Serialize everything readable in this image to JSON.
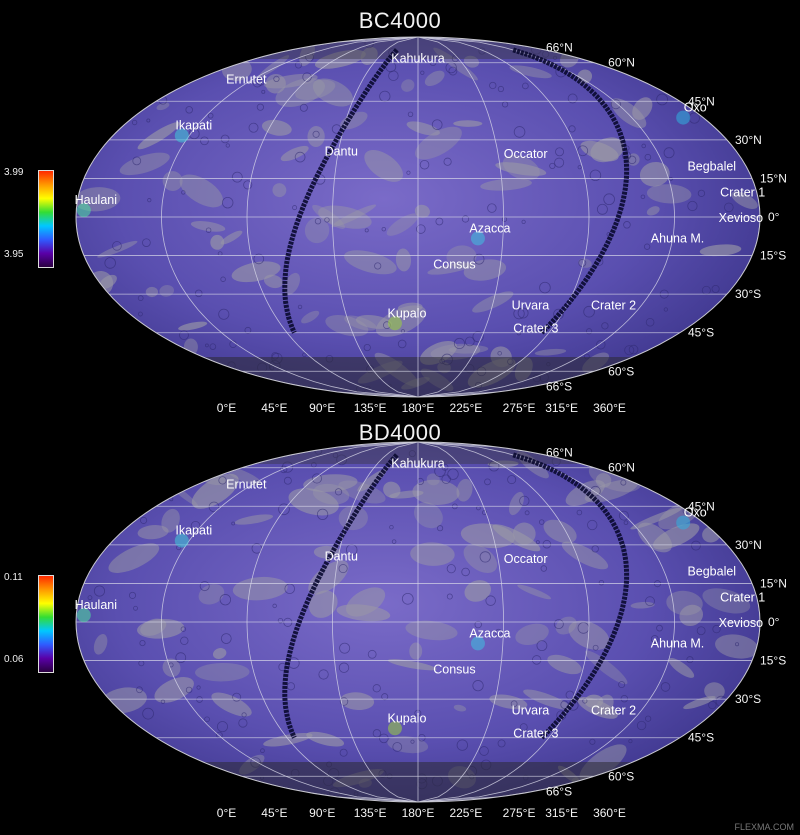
{
  "panels": [
    {
      "title": "BC4000",
      "colorbar": {
        "max": "3.99",
        "min": "3.95"
      },
      "features": [
        {
          "name": "Kahukura",
          "lon": 180,
          "lat": 60
        },
        {
          "name": "Ernutet",
          "lon": 45,
          "lat": 52
        },
        {
          "name": "Ikapati",
          "lon": 45,
          "lat": 34
        },
        {
          "name": "Dantu",
          "lon": 137,
          "lat": 24
        },
        {
          "name": "Occator",
          "lon": 240,
          "lat": 23
        },
        {
          "name": "Oxo",
          "lon": 360,
          "lat": 41
        },
        {
          "name": "Begbalel",
          "lon": 340,
          "lat": 18
        },
        {
          "name": "Crater 1",
          "lon": 352,
          "lat": 8
        },
        {
          "name": "Haulani",
          "lon": 10,
          "lat": 5
        },
        {
          "name": "Xevioso",
          "lon": 350,
          "lat": -2
        },
        {
          "name": "Azacca",
          "lon": 218,
          "lat": -6
        },
        {
          "name": "Ahuna M.",
          "lon": 318,
          "lat": -10
        },
        {
          "name": "Consus",
          "lon": 200,
          "lat": -20
        },
        {
          "name": "Crater 2",
          "lon": 300,
          "lat": -36
        },
        {
          "name": "Kupalo",
          "lon": 173,
          "lat": -39
        },
        {
          "name": "Urvara",
          "lon": 249,
          "lat": -36
        },
        {
          "name": "Crater 3",
          "lon": 261,
          "lat": -45
        }
      ]
    },
    {
      "title": "BD4000",
      "colorbar": {
        "max": "0.11",
        "min": "0.06"
      },
      "features": [
        {
          "name": "Kahukura",
          "lon": 180,
          "lat": 60
        },
        {
          "name": "Ernutet",
          "lon": 45,
          "lat": 52
        },
        {
          "name": "Ikapati",
          "lon": 45,
          "lat": 34
        },
        {
          "name": "Dantu",
          "lon": 137,
          "lat": 24
        },
        {
          "name": "Occator",
          "lon": 240,
          "lat": 23
        },
        {
          "name": "Oxo",
          "lon": 360,
          "lat": 41
        },
        {
          "name": "Begbalel",
          "lon": 340,
          "lat": 18
        },
        {
          "name": "Crater 1",
          "lon": 352,
          "lat": 8
        },
        {
          "name": "Haulani",
          "lon": 10,
          "lat": 5
        },
        {
          "name": "Xevioso",
          "lon": 350,
          "lat": -2
        },
        {
          "name": "Azacca",
          "lon": 218,
          "lat": -6
        },
        {
          "name": "Ahuna M.",
          "lon": 318,
          "lat": -10
        },
        {
          "name": "Consus",
          "lon": 200,
          "lat": -20
        },
        {
          "name": "Crater 2",
          "lon": 300,
          "lat": -36
        },
        {
          "name": "Kupalo",
          "lon": 173,
          "lat": -39
        },
        {
          "name": "Urvara",
          "lon": 249,
          "lat": -36
        },
        {
          "name": "Crater 3",
          "lon": 261,
          "lat": -45
        }
      ]
    }
  ],
  "lat_labels": [
    {
      "label": "66°N",
      "lat": 66
    },
    {
      "label": "60°N",
      "lat": 60
    },
    {
      "label": "45°N",
      "lat": 45
    },
    {
      "label": "30°N",
      "lat": 30
    },
    {
      "label": "15°N",
      "lat": 15
    },
    {
      "label": "0°",
      "lat": 0
    },
    {
      "label": "15°S",
      "lat": -15
    },
    {
      "label": "30°S",
      "lat": -30
    },
    {
      "label": "45°S",
      "lat": -45
    },
    {
      "label": "60°S",
      "lat": -60
    },
    {
      "label": "66°S",
      "lat": -66
    }
  ],
  "lon_labels": [
    {
      "label": "0°E",
      "lon": 0
    },
    {
      "label": "45°E",
      "lon": 45
    },
    {
      "label": "90°E",
      "lon": 90
    },
    {
      "label": "135°E",
      "lon": 135
    },
    {
      "label": "180°E",
      "lon": 180
    },
    {
      "label": "225°E",
      "lon": 225
    },
    {
      "label": "275°E",
      "lon": 275
    },
    {
      "label": "315°E",
      "lon": 315
    },
    {
      "label": "360°E",
      "lon": 360
    }
  ],
  "colors": {
    "surface": "#5a4fb0",
    "surface_dark": "#3a3388",
    "surface_light": "#7a6bc8",
    "grid": "#d8d8e8"
  },
  "credit": "FLEXMA.COM"
}
